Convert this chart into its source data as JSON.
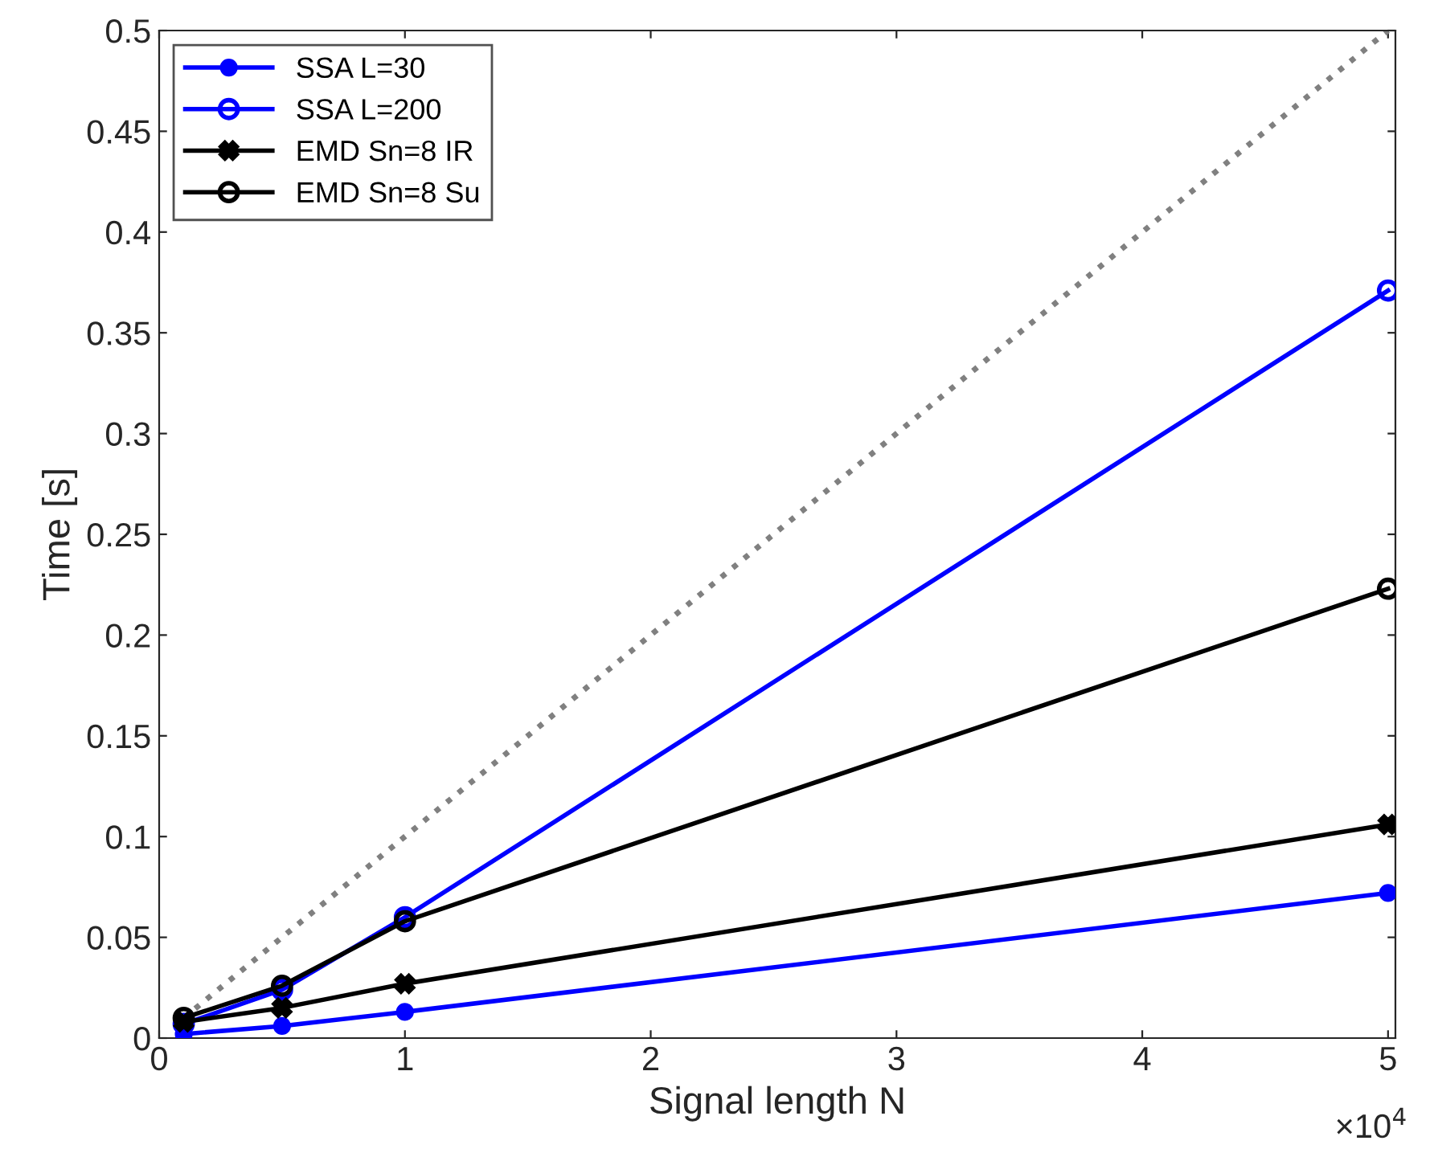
{
  "chart_data": {
    "type": "line",
    "xlabel": "Signal length N",
    "ylabel": "Time [s]",
    "x": [
      0.1,
      0.5,
      1,
      5
    ],
    "series": [
      {
        "name": "SSA L=30",
        "color": "#0000ff",
        "marker": "circle",
        "values": [
          0.002,
          0.006,
          0.013,
          0.072
        ]
      },
      {
        "name": "SSA L=200",
        "color": "#0000ff",
        "marker": "circle",
        "values": [
          0.007,
          0.024,
          0.06,
          0.371
        ]
      },
      {
        "name": "EMD Sn=8 IR",
        "color": "#000000",
        "marker": "cross",
        "values": [
          0.008,
          0.015,
          0.027,
          0.106
        ]
      },
      {
        "name": "EMD Sn=8 Su",
        "color": "#000000",
        "marker": "circle",
        "values": [
          0.01,
          0.026,
          0.058,
          0.223
        ]
      },
      {
        "color": "#808080",
        "marker": "none",
        "line_style": "dotted",
        "x": [
          0.1,
          5
        ],
        "values": [
          0.01,
          0.5
        ]
      }
    ],
    "xlim": [
      0,
      5.03
    ],
    "ylim": [
      0,
      0.5
    ],
    "xticks": [
      0,
      1,
      2,
      3,
      4,
      5
    ],
    "yticks": [
      0,
      0.05,
      0.1,
      0.15,
      0.2,
      0.25,
      0.3,
      0.35,
      0.4,
      0.45,
      0.5
    ],
    "annotations": [
      "×10$^{4}$"
    ],
    "legend": "top left",
    "grid": false
  }
}
